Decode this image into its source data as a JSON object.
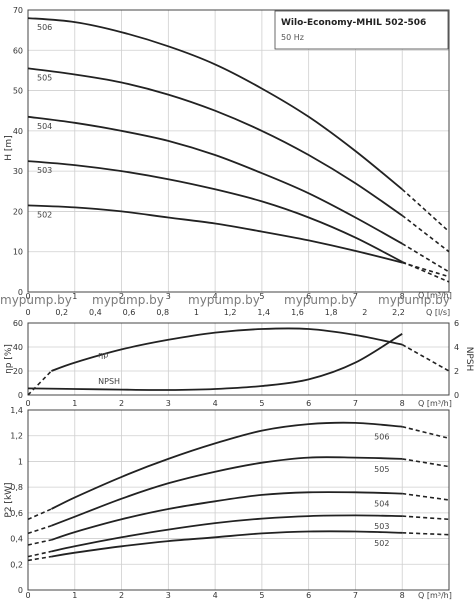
{
  "title": "Wilo-Economy-MHIL 502-506",
  "subtitle": "50 Hz",
  "watermark": "mypump.by",
  "chart_data": [
    {
      "type": "line",
      "ylabel": "H [m]",
      "xlabel": "Q [m³/h]",
      "xlabel2": "Q [l/s]",
      "xlim": [
        0,
        9
      ],
      "ylim": [
        0,
        70
      ],
      "xticks": [
        "0",
        "1",
        "2",
        "3",
        "4",
        "5",
        "6",
        "7",
        "8"
      ],
      "xticks_ls": [
        "0",
        "0,2",
        "0,4",
        "0,6",
        "0,8",
        "1",
        "1,2",
        "1,4",
        "1,6",
        "1,8",
        "2",
        "2,2"
      ],
      "yticks": [
        "0",
        "10",
        "20",
        "30",
        "40",
        "50",
        "60",
        "70"
      ],
      "series": [
        {
          "name": "502",
          "x": [
            0,
            1,
            2,
            3,
            4,
            5,
            6,
            7,
            8
          ],
          "y": [
            21.5,
            21,
            20,
            18.5,
            17,
            15,
            12.8,
            10.2,
            7.3
          ],
          "ext_x": [
            8,
            9
          ],
          "ext_y": [
            7.3,
            3.8
          ]
        },
        {
          "name": "503",
          "x": [
            0,
            1,
            2,
            3,
            4,
            5,
            6,
            7,
            8
          ],
          "y": [
            32.5,
            31.5,
            30,
            28,
            25.5,
            22.5,
            18.5,
            13.5,
            7.5
          ],
          "ext_x": [
            8,
            9
          ],
          "ext_y": [
            7.5,
            2.5
          ]
        },
        {
          "name": "504",
          "x": [
            0,
            1,
            2,
            3,
            4,
            5,
            6,
            7,
            8
          ],
          "y": [
            43.5,
            42,
            40,
            37.5,
            34,
            29.5,
            24.5,
            18.5,
            12
          ],
          "ext_x": [
            8,
            9
          ],
          "ext_y": [
            12,
            5
          ]
        },
        {
          "name": "505",
          "x": [
            0,
            1,
            2,
            3,
            4,
            5,
            6,
            7,
            8
          ],
          "y": [
            55.5,
            54,
            52,
            49,
            45,
            40,
            34,
            27,
            19
          ],
          "ext_x": [
            8,
            9
          ],
          "ext_y": [
            19,
            10
          ]
        },
        {
          "name": "506",
          "x": [
            0,
            1,
            2,
            3,
            4,
            5,
            6,
            7,
            8
          ],
          "y": [
            68,
            67,
            64.5,
            61,
            56.5,
            50.5,
            43.5,
            35,
            25.5
          ],
          "ext_x": [
            8,
            9
          ],
          "ext_y": [
            25.5,
            15
          ]
        }
      ]
    },
    {
      "type": "line",
      "ylabel": "ηp [%]",
      "y2label": "NPSH",
      "xlabel": "Q [m³/h]",
      "xlim": [
        0,
        9
      ],
      "ylim": [
        0,
        60
      ],
      "y2lim": [
        0,
        6
      ],
      "xticks": [
        "0",
        "1",
        "2",
        "3",
        "4",
        "5",
        "6",
        "7",
        "8"
      ],
      "yticks": [
        "0",
        "20",
        "40",
        "60"
      ],
      "y2ticks": [
        "0",
        "2",
        "4",
        "6"
      ],
      "series": [
        {
          "name": "ηp",
          "axis": "left",
          "x": [
            0.5,
            1,
            2,
            3,
            4,
            5,
            6,
            7,
            8
          ],
          "y": [
            20,
            27,
            38,
            46,
            52,
            55,
            55,
            50,
            42
          ],
          "ext_x": [
            0,
            0.5
          ],
          "ext_y": [
            0,
            20
          ],
          "ext2_x": [
            8,
            9
          ],
          "ext2_y": [
            42,
            20
          ]
        },
        {
          "name": "NPSH",
          "axis": "right",
          "x": [
            0,
            1,
            2,
            3,
            4,
            5,
            6,
            7,
            8
          ],
          "y": [
            0.55,
            0.5,
            0.45,
            0.42,
            0.5,
            0.75,
            1.3,
            2.7,
            5.1
          ]
        }
      ]
    },
    {
      "type": "line",
      "ylabel": "P2 [kW]",
      "xlabel": "Q [m³/h]",
      "xlim": [
        0,
        9
      ],
      "ylim": [
        0,
        1.4
      ],
      "xticks": [
        "0",
        "1",
        "2",
        "3",
        "4",
        "5",
        "6",
        "7",
        "8"
      ],
      "yticks": [
        "0",
        "0,2",
        "0,4",
        "0,6",
        "0,8",
        "1",
        "1,2",
        "1,4"
      ],
      "series": [
        {
          "name": "502",
          "x": [
            0.5,
            1,
            2,
            3,
            4,
            5,
            6,
            7,
            8
          ],
          "y": [
            0.26,
            0.29,
            0.34,
            0.38,
            0.41,
            0.44,
            0.455,
            0.455,
            0.445
          ],
          "ext_x": [
            0,
            0.5
          ],
          "ext_y": [
            0.23,
            0.26
          ],
          "ext2_x": [
            8,
            9
          ],
          "ext2_y": [
            0.445,
            0.43
          ]
        },
        {
          "name": "503",
          "x": [
            0.5,
            1,
            2,
            3,
            4,
            5,
            6,
            7,
            8
          ],
          "y": [
            0.3,
            0.34,
            0.41,
            0.47,
            0.52,
            0.555,
            0.575,
            0.58,
            0.575
          ],
          "ext_x": [
            0,
            0.5
          ],
          "ext_y": [
            0.26,
            0.3
          ],
          "ext2_x": [
            8,
            9
          ],
          "ext2_y": [
            0.575,
            0.55
          ]
        },
        {
          "name": "504",
          "x": [
            0.5,
            1,
            2,
            3,
            4,
            5,
            6,
            7,
            8
          ],
          "y": [
            0.39,
            0.45,
            0.55,
            0.63,
            0.69,
            0.74,
            0.76,
            0.76,
            0.75
          ],
          "ext_x": [
            0,
            0.5
          ],
          "ext_y": [
            0.35,
            0.39
          ],
          "ext2_x": [
            8,
            9
          ],
          "ext2_y": [
            0.75,
            0.7
          ]
        },
        {
          "name": "505",
          "x": [
            0.5,
            1,
            2,
            3,
            4,
            5,
            6,
            7,
            8
          ],
          "y": [
            0.5,
            0.57,
            0.71,
            0.83,
            0.92,
            0.99,
            1.03,
            1.03,
            1.02
          ],
          "ext_x": [
            0,
            0.5
          ],
          "ext_y": [
            0.44,
            0.5
          ],
          "ext2_x": [
            8,
            9
          ],
          "ext2_y": [
            1.02,
            0.96
          ]
        },
        {
          "name": "506",
          "x": [
            0.5,
            1,
            2,
            3,
            4,
            5,
            6,
            7,
            8
          ],
          "y": [
            0.63,
            0.72,
            0.88,
            1.02,
            1.14,
            1.24,
            1.29,
            1.3,
            1.27
          ],
          "ext_x": [
            0,
            0.5
          ],
          "ext_y": [
            0.55,
            0.63
          ],
          "ext2_x": [
            8,
            9
          ],
          "ext2_y": [
            1.27,
            1.18
          ]
        }
      ]
    }
  ]
}
